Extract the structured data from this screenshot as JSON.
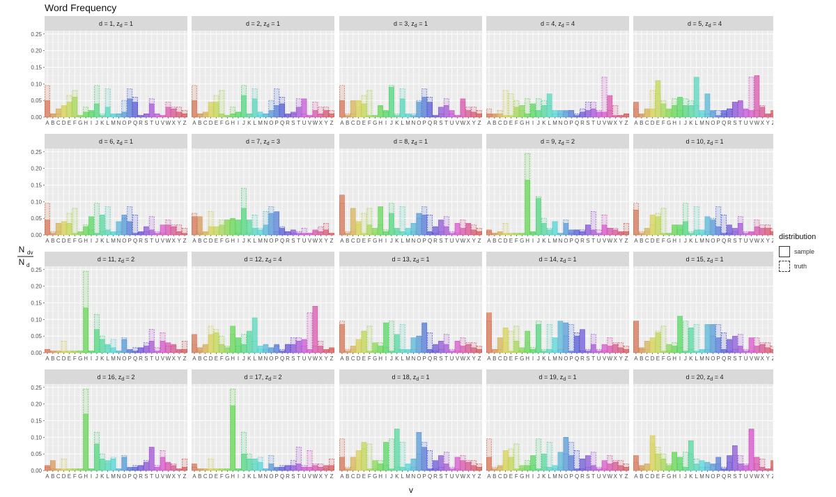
{
  "title": "Word Frequency",
  "legend": {
    "title": "distribution",
    "items": [
      {
        "label": "sample",
        "style": "solid"
      },
      {
        "label": "truth",
        "style": "dashed"
      }
    ]
  },
  "chart_data": {
    "type": "bar",
    "title": "Word Frequency",
    "xlabel": "v",
    "ylabel": "N_dv / N_d",
    "ylim": [
      0,
      0.26
    ],
    "yticks": [
      "0.00",
      "0.05",
      "0.10",
      "0.15",
      "0.20",
      "0.25"
    ],
    "grid": true,
    "facet_columns": 5,
    "categories": [
      "A",
      "B",
      "C",
      "D",
      "E",
      "F",
      "G",
      "H",
      "I",
      "J",
      "K",
      "L",
      "M",
      "N",
      "O",
      "P",
      "Q",
      "R",
      "S",
      "T",
      "U",
      "V",
      "W",
      "X",
      "Y",
      "Z"
    ],
    "legend_position": "right",
    "truth_profiles": {
      "1": [
        0.095,
        0.01,
        0.01,
        0.03,
        0.065,
        0.08,
        0.005,
        0.03,
        0.015,
        0.095,
        0.01,
        0.085,
        0.005,
        0.01,
        0.05,
        0.085,
        0.06,
        0.005,
        0.01,
        0.055,
        0.01,
        0.005,
        0.045,
        0.03,
        0.03,
        0.02
      ],
      "2": [
        0.01,
        0.005,
        0.005,
        0.035,
        0.005,
        0.005,
        0.005,
        0.245,
        0.005,
        0.115,
        0.05,
        0.02,
        0.04,
        0.005,
        0.045,
        0.005,
        0.015,
        0.015,
        0.03,
        0.07,
        0.015,
        0.06,
        0.02,
        0.02,
        0.005,
        0.035
      ],
      "3": [
        0.065,
        0.005,
        0.005,
        0.07,
        0.01,
        0.045,
        0.045,
        0.045,
        0.005,
        0.14,
        0.005,
        0.06,
        0.02,
        0.07,
        0.085,
        0.01,
        0.025,
        0.01,
        0.005,
        0.01,
        0.02,
        0.005,
        0.01,
        0.025,
        0.035,
        0.005
      ],
      "4": [
        0.025,
        0.005,
        0.02,
        0.08,
        0.07,
        0.05,
        0.02,
        0.055,
        0.02,
        0.055,
        0.05,
        0.035,
        0.01,
        0.01,
        0.015,
        0.02,
        0.01,
        0.025,
        0.045,
        0.045,
        0.02,
        0.12,
        0.02,
        0.035,
        0.005,
        0.01
      ]
    },
    "facets": [
      {
        "label": "d = 1, z_d = 1",
        "d": 1,
        "z": 1,
        "sample": [
          0.05,
          0.01,
          0.025,
          0.035,
          0.045,
          0.06,
          0.005,
          0.015,
          0.02,
          0.04,
          0.005,
          0.03,
          0.01,
          0.01,
          0.015,
          0.055,
          0.045,
          0.005,
          0.01,
          0.04,
          0.01,
          0.005,
          0.03,
          0.025,
          0.015,
          0.01
        ]
      },
      {
        "label": "d = 2, z_d = 1",
        "d": 2,
        "z": 1,
        "sample": [
          0.05,
          0.01,
          0.015,
          0.045,
          0.045,
          0.01,
          0.005,
          0.01,
          0.015,
          0.065,
          0.01,
          0.055,
          0.015,
          0.01,
          0.02,
          0.035,
          0.04,
          0.01,
          0.015,
          0.03,
          0.055,
          0.005,
          0.02,
          0.01,
          0.02,
          0.01
        ]
      },
      {
        "label": "d = 3, z_d = 1",
        "d": 3,
        "z": 1,
        "sample": [
          0.05,
          0.005,
          0.05,
          0.05,
          0.04,
          0.005,
          0.005,
          0.035,
          0.02,
          0.09,
          0.005,
          0.055,
          0.01,
          0.005,
          0.045,
          0.06,
          0.045,
          0.005,
          0.03,
          0.035,
          0.02,
          0.005,
          0.055,
          0.02,
          0.015,
          0.01
        ]
      },
      {
        "label": "d = 4, z_d = 4",
        "d": 4,
        "z": 4,
        "sample": [
          0.01,
          0.01,
          0.01,
          0.005,
          0.005,
          0.03,
          0.035,
          0.01,
          0.04,
          0.02,
          0.035,
          0.07,
          0.02,
          0.02,
          0.02,
          0.02,
          0.005,
          0.015,
          0.02,
          0.025,
          0.015,
          0.015,
          0.065,
          0.005,
          0.005,
          0.01
        ]
      },
      {
        "label": "d = 5, z_d = 4",
        "d": 5,
        "z": 4,
        "sample": [
          0.045,
          0.01,
          0.025,
          0.025,
          0.11,
          0.04,
          0.025,
          0.035,
          0.06,
          0.035,
          0.035,
          0.12,
          0.02,
          0.07,
          0.02,
          0.005,
          0.02,
          0.025,
          0.045,
          0.05,
          0.025,
          0.02,
          0.125,
          0.03,
          0.01,
          0.02
        ]
      },
      {
        "label": "d = 6, z_d = 1",
        "d": 6,
        "z": 1,
        "sample": [
          0.045,
          0.005,
          0.035,
          0.04,
          0.035,
          0.005,
          0.01,
          0.025,
          0.055,
          0.005,
          0.06,
          0.015,
          0.01,
          0.04,
          0.06,
          0.04,
          0.005,
          0.01,
          0.025,
          0.015,
          0.005,
          0.03,
          0.03,
          0.025,
          0.01,
          0.005
        ]
      },
      {
        "label": "d = 7, z_d = 3",
        "d": 7,
        "z": 3,
        "sample": [
          0.055,
          0.055,
          0.01,
          0.025,
          0.025,
          0.03,
          0.045,
          0.05,
          0.045,
          0.08,
          0.045,
          0.02,
          0.015,
          0.03,
          0.065,
          0.07,
          0.02,
          0.01,
          0.015,
          0.005,
          0.005,
          0.005,
          0.015,
          0.01,
          0.015,
          0.005
        ]
      },
      {
        "label": "d = 8, z_d = 1",
        "d": 8,
        "z": 1,
        "sample": [
          0.12,
          0.005,
          0.08,
          0.04,
          0.005,
          0.03,
          0.02,
          0.085,
          0.01,
          0.065,
          0.02,
          0.01,
          0.02,
          0.035,
          0.065,
          0.06,
          0.01,
          0.025,
          0.045,
          0.025,
          0.005,
          0.035,
          0.02,
          0.035,
          0.015,
          0.01
        ]
      },
      {
        "label": "d = 9, z_d = 2",
        "d": 9,
        "z": 2,
        "sample": [
          0.015,
          0.005,
          0.01,
          0.005,
          0.005,
          0.005,
          0.005,
          0.165,
          0.01,
          0.11,
          0.035,
          0.015,
          0.04,
          0.005,
          0.035,
          0.015,
          0.015,
          0.01,
          0.03,
          0.015,
          0.005,
          0.03,
          0.02,
          0.015,
          0.01,
          0.01
        ]
      },
      {
        "label": "d = 10, z_d = 1",
        "d": 10,
        "z": 1,
        "sample": [
          0.075,
          0.005,
          0.02,
          0.06,
          0.055,
          0.005,
          0.005,
          0.03,
          0.03,
          0.04,
          0.005,
          0.015,
          0.015,
          0.055,
          0.045,
          0.025,
          0.005,
          0.03,
          0.02,
          0.035,
          0.005,
          0.01,
          0.025,
          0.02,
          0.02,
          0.01
        ]
      },
      {
        "label": "d = 11, z_d = 2",
        "d": 11,
        "z": 2,
        "sample": [
          0.01,
          0.005,
          0.005,
          0.005,
          0.005,
          0.005,
          0.005,
          0.135,
          0.005,
          0.07,
          0.04,
          0.025,
          0.015,
          0.005,
          0.04,
          0.01,
          0.005,
          0.015,
          0.02,
          0.035,
          0.005,
          0.035,
          0.03,
          0.025,
          0.01,
          0.01
        ]
      },
      {
        "label": "d = 12, z_d = 4",
        "d": 12,
        "z": 4,
        "sample": [
          0.055,
          0.015,
          0.025,
          0.055,
          0.06,
          0.025,
          0.015,
          0.08,
          0.045,
          0.025,
          0.065,
          0.105,
          0.02,
          0.025,
          0.015,
          0.025,
          0.005,
          0.025,
          0.025,
          0.035,
          0.04,
          0.01,
          0.14,
          0.02,
          0.01,
          0.015
        ]
      },
      {
        "label": "d = 13, z_d = 1",
        "d": 13,
        "z": 1,
        "sample": [
          0.085,
          0.005,
          0.02,
          0.04,
          0.065,
          0.005,
          0.03,
          0.02,
          0.09,
          0.005,
          0.055,
          0.01,
          0.01,
          0.045,
          0.05,
          0.09,
          0.01,
          0.025,
          0.035,
          0.025,
          0.005,
          0.035,
          0.02,
          0.025,
          0.015,
          0.01
        ]
      },
      {
        "label": "d = 14, z_d = 1",
        "d": 14,
        "z": 1,
        "sample": [
          0.12,
          0.01,
          0.045,
          0.075,
          0.005,
          0.035,
          0.015,
          0.065,
          0.01,
          0.085,
          0.005,
          0.01,
          0.045,
          0.095,
          0.09,
          0.005,
          0.05,
          0.07,
          0.005,
          0.025,
          0.005,
          0.025,
          0.02,
          0.025,
          0.015,
          0.01
        ]
      },
      {
        "label": "d = 15, z_d = 1",
        "d": 15,
        "z": 1,
        "sample": [
          0.095,
          0.015,
          0.035,
          0.045,
          0.06,
          0.005,
          0.025,
          0.02,
          0.11,
          0.005,
          0.075,
          0.005,
          0.01,
          0.085,
          0.085,
          0.045,
          0.01,
          0.04,
          0.05,
          0.02,
          0.005,
          0.045,
          0.02,
          0.025,
          0.015,
          0.01
        ]
      },
      {
        "label": "d = 16, z_d = 2",
        "d": 16,
        "z": 2,
        "sample": [
          0.015,
          0.03,
          0.005,
          0.005,
          0.005,
          0.005,
          0.005,
          0.17,
          0.005,
          0.08,
          0.035,
          0.03,
          0.035,
          0.005,
          0.04,
          0.01,
          0.01,
          0.015,
          0.025,
          0.07,
          0.01,
          0.04,
          0.025,
          0.015,
          0.005,
          0.01
        ]
      },
      {
        "label": "d = 17, z_d = 2",
        "d": 17,
        "z": 2,
        "sample": [
          0.02,
          0.005,
          0.005,
          0.005,
          0.005,
          0.005,
          0.005,
          0.195,
          0.005,
          0.05,
          0.035,
          0.035,
          0.025,
          0.005,
          0.02,
          0.01,
          0.01,
          0.015,
          0.015,
          0.02,
          0.01,
          0.01,
          0.015,
          0.01,
          0.015,
          0.015
        ]
      },
      {
        "label": "d = 18, z_d = 1",
        "d": 18,
        "z": 1,
        "sample": [
          0.04,
          0.005,
          0.04,
          0.06,
          0.085,
          0.005,
          0.03,
          0.02,
          0.085,
          0.005,
          0.125,
          0.01,
          0.02,
          0.035,
          0.115,
          0.07,
          0.005,
          0.03,
          0.045,
          0.02,
          0.005,
          0.04,
          0.03,
          0.025,
          0.015,
          0.01
        ]
      },
      {
        "label": "d = 19, z_d = 1",
        "d": 19,
        "z": 1,
        "sample": [
          0.04,
          0.005,
          0.015,
          0.06,
          0.04,
          0.005,
          0.015,
          0.015,
          0.045,
          0.005,
          0.05,
          0.01,
          0.015,
          0.055,
          0.1,
          0.045,
          0.005,
          0.035,
          0.045,
          0.015,
          0.005,
          0.03,
          0.02,
          0.025,
          0.015,
          0.01
        ]
      },
      {
        "label": "d = 20, z_d = 4",
        "d": 20,
        "z": 4,
        "sample": [
          0.045,
          0.015,
          0.02,
          0.105,
          0.05,
          0.035,
          0.015,
          0.055,
          0.04,
          0.01,
          0.09,
          0.02,
          0.03,
          0.025,
          0.02,
          0.04,
          0.005,
          0.045,
          0.075,
          0.02,
          0.015,
          0.125,
          0.04,
          0.01,
          0.005,
          0.03
        ]
      }
    ]
  }
}
